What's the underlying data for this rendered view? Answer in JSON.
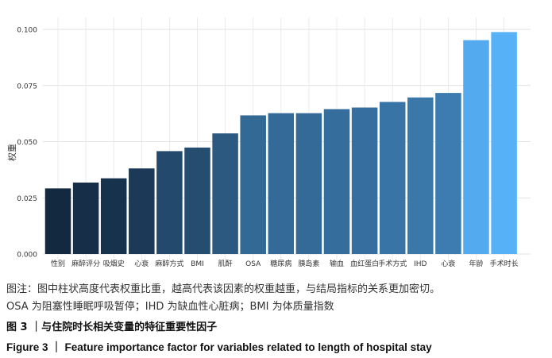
{
  "chart_data": {
    "type": "bar",
    "ylabel": "权重",
    "xlabel": "",
    "title": "",
    "ylim": [
      0,
      0.1
    ],
    "yticks": [
      "0.000",
      "0.025",
      "0.050",
      "0.075",
      "0.100"
    ],
    "ytick_values": [
      0,
      0.025,
      0.05,
      0.075,
      0.1
    ],
    "grid": true,
    "legend": "none",
    "color_scale": [
      "#132940",
      "#56b1f7"
    ],
    "categories": [
      "性别",
      "麻醉评分",
      "吸烟史",
      "心衰",
      "麻醉方式",
      "BMI",
      "肌酐",
      "OSA",
      "糖尿病",
      "胰岛素",
      "输血",
      "血红蛋白",
      "手术方式",
      "IHD",
      "心衰",
      "年龄",
      "手术时长"
    ],
    "values": [
      0.0292,
      0.0318,
      0.0337,
      0.0381,
      0.0458,
      0.0474,
      0.0537,
      0.0617,
      0.0627,
      0.0627,
      0.0645,
      0.0652,
      0.0677,
      0.0697,
      0.0717,
      0.0952,
      0.0988
    ]
  },
  "caption": {
    "note_line1": "图注：图中柱状高度代表权重比重，越高代表该因素的权重越重，与结局指标的关系更加密切。",
    "note_line2": "OSA 为阻塞性睡眠呼吸暂停；IHD 为缺血性心脏病；BMI 为体质量指数",
    "figure_cn": "图 3 ｜与住院时长相关变量的特征重要性因子",
    "figure_en": "Figure 3 ｜ Feature importance factor for variables related to length of hospital stay"
  }
}
